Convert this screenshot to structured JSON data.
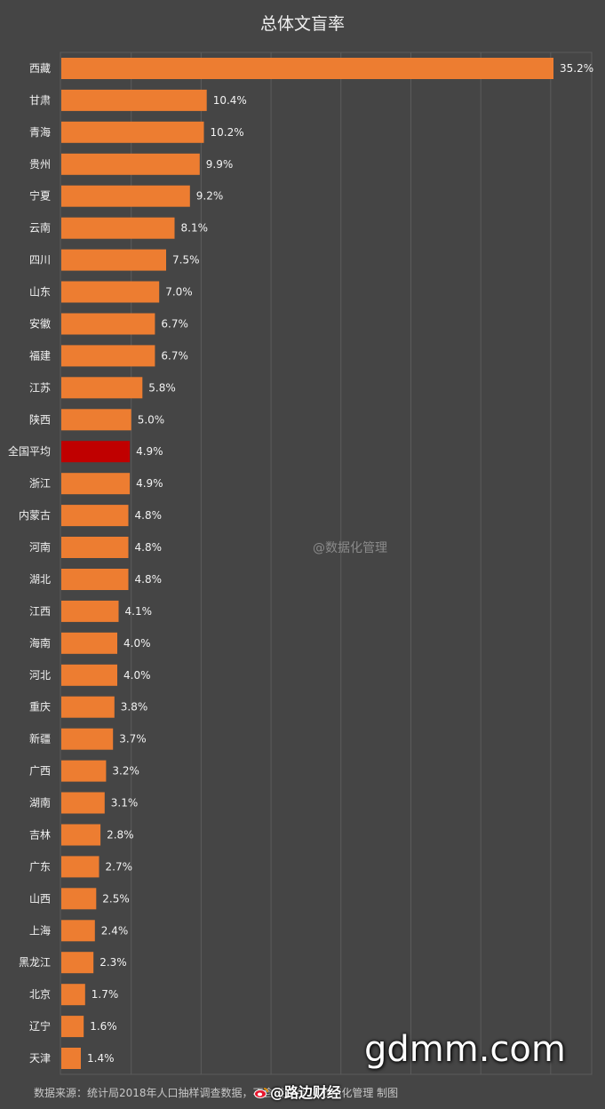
{
  "chart_data": {
    "type": "bar",
    "orientation": "horizontal",
    "title": "总体文盲率",
    "categories": [
      "西藏",
      "甘肃",
      "青海",
      "贵州",
      "宁夏",
      "云南",
      "四川",
      "山东",
      "安徽",
      "福建",
      "江苏",
      "陕西",
      "全国平均",
      "浙江",
      "内蒙古",
      "河南",
      "湖北",
      "江西",
      "海南",
      "河北",
      "重庆",
      "新疆",
      "广西",
      "湖南",
      "吉林",
      "广东",
      "山西",
      "上海",
      "黑龙江",
      "北京",
      "辽宁",
      "天津"
    ],
    "values": [
      35.2,
      10.4,
      10.2,
      9.9,
      9.2,
      8.1,
      7.5,
      7.0,
      6.7,
      6.7,
      5.8,
      5.0,
      4.9,
      4.9,
      4.8,
      4.8,
      4.8,
      4.1,
      4.0,
      4.0,
      3.8,
      3.7,
      3.2,
      3.1,
      2.8,
      2.7,
      2.5,
      2.4,
      2.3,
      1.7,
      1.6,
      1.4
    ],
    "value_labels": [
      "35.2%",
      "10.4%",
      "10.2%",
      "9.9%",
      "9.2%",
      "8.1%",
      "7.5%",
      "7.0%",
      "6.7%",
      "6.7%",
      "5.8%",
      "5.0%",
      "4.9%",
      "4.9%",
      "4.8%",
      "4.8%",
      "4.8%",
      "4.1%",
      "4.0%",
      "4.0%",
      "3.8%",
      "3.7%",
      "3.2%",
      "3.1%",
      "2.8%",
      "2.7%",
      "2.5%",
      "2.4%",
      "2.3%",
      "1.7%",
      "1.6%",
      "1.4%"
    ],
    "highlight_category": "全国平均",
    "xlim": [
      0,
      40
    ],
    "grid": true,
    "colors": {
      "bar": "#ed7d31",
      "highlight": "#c00000",
      "background": "#454545",
      "grid": "#5c5c5c"
    }
  },
  "watermark_inner": "@数据化管理",
  "source": "数据来源：统计局2018年人口抽样调查数据，不含港澳台 @数据化管理  制图",
  "weibo_mark": "@路边财经",
  "site_mark": "gdmm.com"
}
